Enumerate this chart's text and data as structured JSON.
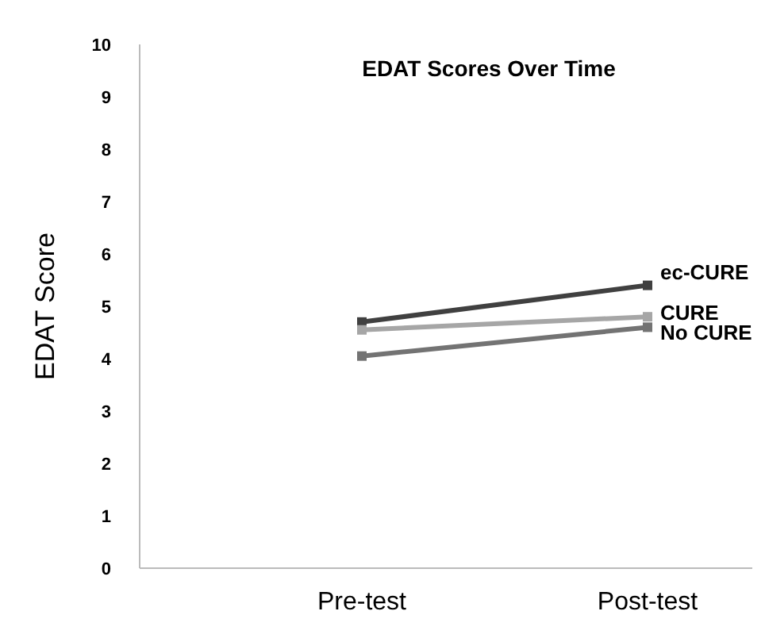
{
  "chart_data": {
    "type": "line",
    "title": "EDAT Scores Over Time",
    "ylabel": "EDAT Score",
    "categories": [
      "Pre-test",
      "Post-test"
    ],
    "ylim": [
      0,
      10
    ],
    "yticks": [
      0,
      1,
      2,
      3,
      4,
      5,
      6,
      7,
      8,
      9,
      10
    ],
    "grid": false,
    "marker": "square",
    "line_style": "solid",
    "series": [
      {
        "name": "ec-CURE",
        "color": "#404040",
        "values": [
          4.7,
          5.4
        ]
      },
      {
        "name": "CURE",
        "color": "#a6a6a6",
        "values": [
          4.55,
          4.8
        ]
      },
      {
        "name": "No CURE",
        "color": "#737373",
        "values": [
          4.05,
          4.6
        ]
      }
    ]
  }
}
